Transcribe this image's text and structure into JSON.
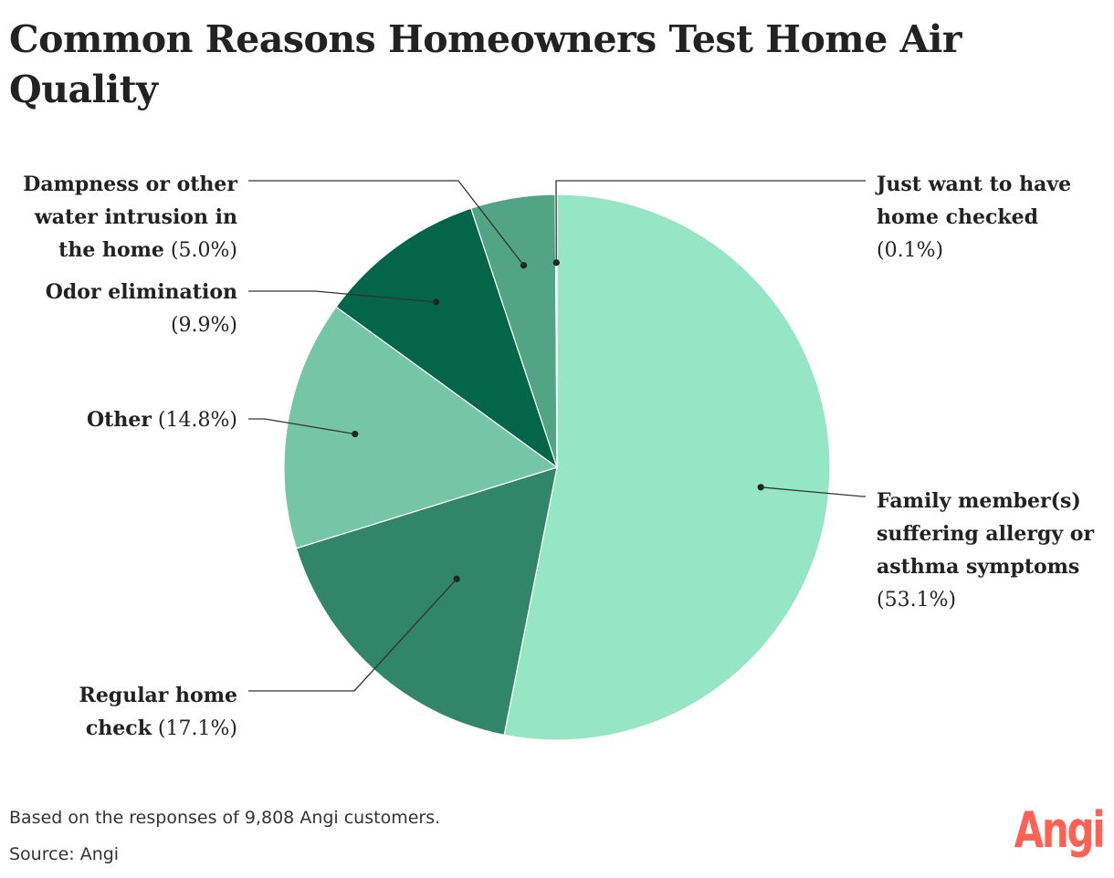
{
  "title": "Common Reasons Homeowners Test Home Air Quality",
  "footer": {
    "note": "Based on the responses of 9,808 Angi customers.",
    "source": "Source: Angi"
  },
  "logo": {
    "text": "Angi",
    "color": "#ff6153"
  },
  "chart_data": {
    "type": "pie",
    "title": "Common Reasons Homeowners Test Home Air Quality",
    "start": "12 o'clock",
    "direction": "clockwise",
    "slices": [
      {
        "label": "Family member(s) suffering allergy or asthma symptoms",
        "value": 53.1,
        "value_label": "(53.1%)",
        "color": "#95e6c5",
        "label_lines": [
          "Family member(s)",
          "suffering allergy or",
          "asthma symptoms"
        ],
        "label_side": "right"
      },
      {
        "label": "Regular home check",
        "value": 17.1,
        "value_label": "(17.1%)",
        "color": "#318568",
        "label_lines": [
          "Regular home",
          "check"
        ],
        "label_side": "left"
      },
      {
        "label": "Other",
        "value": 14.8,
        "value_label": "(14.8%)",
        "color": "#75c6a6",
        "label_lines": [
          "Other"
        ],
        "label_side": "left"
      },
      {
        "label": "Odor elimination",
        "value": 9.9,
        "value_label": "(9.9%)",
        "color": "#036648",
        "label_lines": [
          "Odor elimination"
        ],
        "label_side": "left"
      },
      {
        "label": "Dampness or other water intrusion in the home",
        "value": 5.0,
        "value_label": "(5.0%)",
        "color": "#52a584",
        "label_lines": [
          "Dampness or other",
          "water intrusion in",
          "the home"
        ],
        "label_side": "left"
      },
      {
        "label": "Just want to have home checked",
        "value": 0.1,
        "value_label": "(0.1%)",
        "color": "#c9f3e1",
        "label_lines": [
          "Just want to have",
          "home checked"
        ],
        "label_side": "right"
      }
    ]
  }
}
